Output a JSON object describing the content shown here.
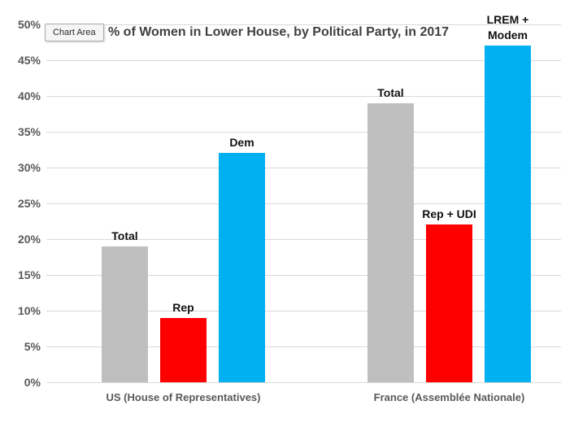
{
  "tooltip": {
    "label": "Chart Area"
  },
  "colors": {
    "gray_bar": "#bfbfbf",
    "red_bar": "#ff0000",
    "blue_bar": "#00b0f0",
    "gridline": "#d9d9d9",
    "axis_text": "#595959",
    "title_text": "#404040"
  },
  "chart_data": {
    "type": "bar",
    "title": "% of Women in Lower House, by Political Party, in 2017",
    "xlabel": "",
    "ylabel": "",
    "ylim": [
      0,
      50
    ],
    "ytick_step": 5,
    "ytick_values": [
      0,
      5,
      10,
      15,
      20,
      25,
      30,
      35,
      40,
      45,
      50
    ],
    "ytick_labels": [
      "0%",
      "5%",
      "10%",
      "15%",
      "20%",
      "25%",
      "30%",
      "35%",
      "40%",
      "45%",
      "50%"
    ],
    "grid": true,
    "legend": "none",
    "categories": [
      "US (House of Representatives)",
      "France (Assemblée Nationale)"
    ],
    "groups": [
      {
        "category": "US (House of Representatives)",
        "bars": [
          {
            "label": "Total",
            "value": 19,
            "color": "#bfbfbf"
          },
          {
            "label": "Rep",
            "value": 9,
            "color": "#ff0000"
          },
          {
            "label": "Dem",
            "value": 32,
            "color": "#00b0f0"
          }
        ]
      },
      {
        "category": "France (Assemblée Nationale)",
        "bars": [
          {
            "label": "Total",
            "value": 39,
            "color": "#bfbfbf"
          },
          {
            "label": "Rep + UDI",
            "value": 22,
            "color": "#ff0000"
          },
          {
            "label": "LREM +\nModem",
            "value": 47,
            "color": "#00b0f0"
          }
        ]
      }
    ]
  }
}
